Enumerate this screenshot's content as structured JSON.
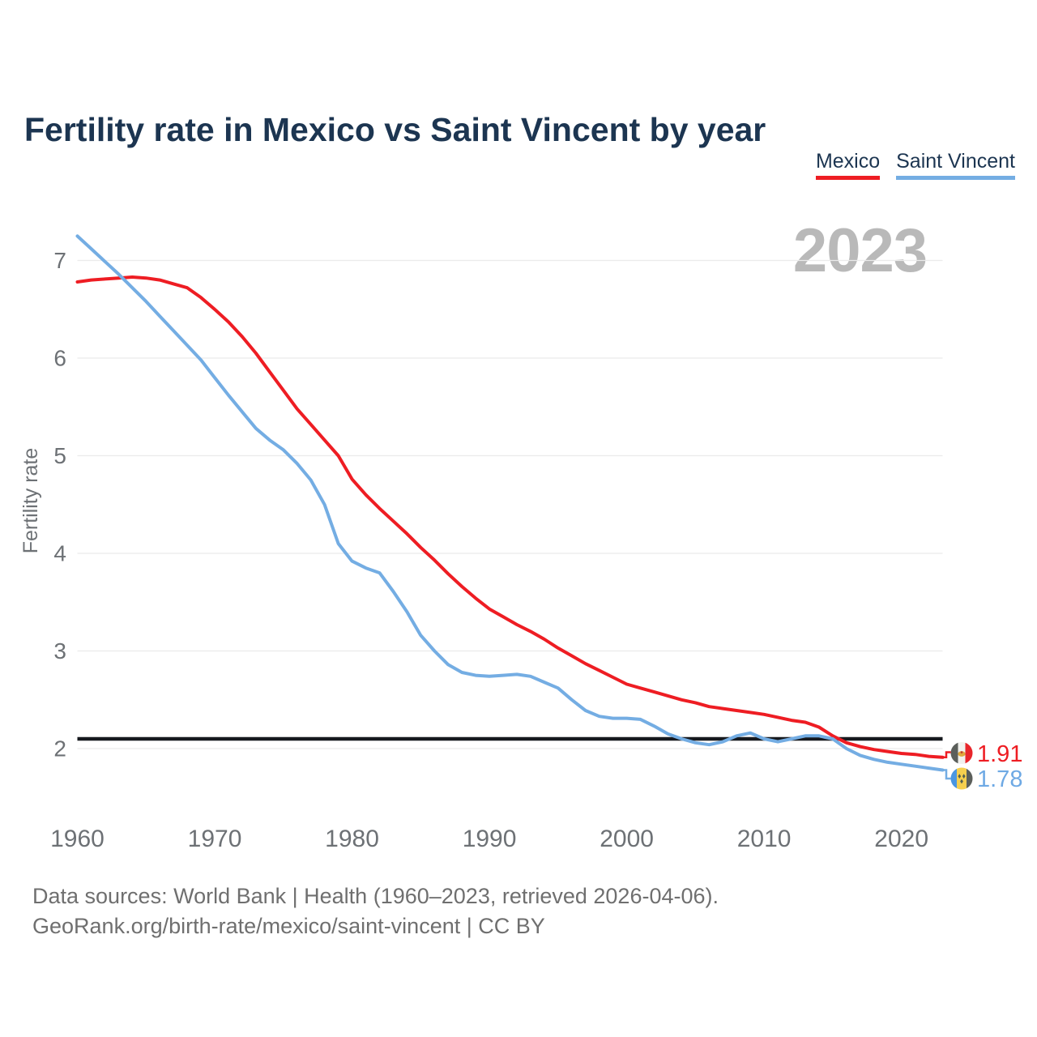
{
  "title": "Fertility rate in Mexico vs Saint Vincent by year",
  "watermark": "2023",
  "legend": {
    "items": [
      {
        "label": "Mexico",
        "color": "#ee1d23"
      },
      {
        "label": "Saint Vincent",
        "color": "#74ade3"
      }
    ]
  },
  "y_axis": {
    "label": "Fertility rate",
    "ticks": [
      7,
      6,
      5,
      4,
      3,
      2
    ]
  },
  "x_axis": {
    "ticks": [
      1960,
      1970,
      1980,
      1990,
      2000,
      2010,
      2020
    ]
  },
  "reference_line": {
    "value": 2.1,
    "color": "#16191e"
  },
  "end_labels": {
    "mexico": {
      "value": "1.91",
      "flag": "mexico-flag",
      "color": "#ee1d23"
    },
    "saint_vincent": {
      "value": "1.78",
      "flag": "saint-vincent-flag",
      "color": "#6ea9e4"
    }
  },
  "footer": {
    "line1": "Data sources: World Bank | Health (1960–2023, retrieved 2026-04-06).",
    "line2": "GeoRank.org/birth-rate/mexico/saint-vincent | CC BY"
  },
  "colors": {
    "title_text": "#1c3551",
    "axis_text": "#6d7175",
    "gridline": "#ebebeb",
    "watermark": "#b9b9b9",
    "mexico_line": "#ee1d23",
    "saint_vincent_line": "#74ade3",
    "reference_line": "#16191e"
  },
  "chart_data": {
    "type": "line",
    "title": "Fertility rate in Mexico vs Saint Vincent by year",
    "xlabel": "",
    "ylabel": "Fertility rate",
    "x_start": 1960,
    "x_end": 2023,
    "ylim": [
      1.6,
      7.4
    ],
    "yticks": [
      2,
      3,
      4,
      5,
      6,
      7
    ],
    "xticks": [
      1960,
      1970,
      1980,
      1990,
      2000,
      2010,
      2020
    ],
    "grid": "horizontal",
    "legend_position": "top-right",
    "reference_line": 2.1,
    "series": [
      {
        "name": "Mexico",
        "color": "#ee1d23",
        "final_value_label": "1.91",
        "values": [
          6.78,
          6.8,
          6.81,
          6.82,
          6.83,
          6.82,
          6.8,
          6.76,
          6.72,
          6.62,
          6.5,
          6.37,
          6.22,
          6.05,
          5.86,
          5.67,
          5.48,
          5.32,
          5.16,
          5.0,
          4.76,
          4.6,
          4.46,
          4.33,
          4.2,
          4.06,
          3.93,
          3.79,
          3.66,
          3.54,
          3.43,
          3.35,
          3.27,
          3.2,
          3.12,
          3.03,
          2.95,
          2.87,
          2.8,
          2.73,
          2.66,
          2.62,
          2.58,
          2.54,
          2.5,
          2.47,
          2.43,
          2.41,
          2.39,
          2.37,
          2.35,
          2.32,
          2.29,
          2.27,
          2.22,
          2.13,
          2.06,
          2.02,
          1.99,
          1.97,
          1.95,
          1.94,
          1.92,
          1.91
        ]
      },
      {
        "name": "Saint Vincent",
        "color": "#74ade3",
        "final_value_label": "1.78",
        "values": [
          7.25,
          7.12,
          6.99,
          6.86,
          6.72,
          6.58,
          6.43,
          6.28,
          6.13,
          5.98,
          5.8,
          5.62,
          5.45,
          5.28,
          5.16,
          5.06,
          4.92,
          4.75,
          4.5,
          4.1,
          3.92,
          3.85,
          3.8,
          3.61,
          3.4,
          3.16,
          3.0,
          2.86,
          2.78,
          2.75,
          2.74,
          2.75,
          2.76,
          2.74,
          2.68,
          2.62,
          2.5,
          2.39,
          2.33,
          2.31,
          2.31,
          2.3,
          2.23,
          2.15,
          2.1,
          2.06,
          2.04,
          2.07,
          2.13,
          2.16,
          2.1,
          2.07,
          2.1,
          2.13,
          2.13,
          2.1,
          2.0,
          1.93,
          1.89,
          1.86,
          1.84,
          1.82,
          1.8,
          1.78
        ]
      }
    ]
  }
}
